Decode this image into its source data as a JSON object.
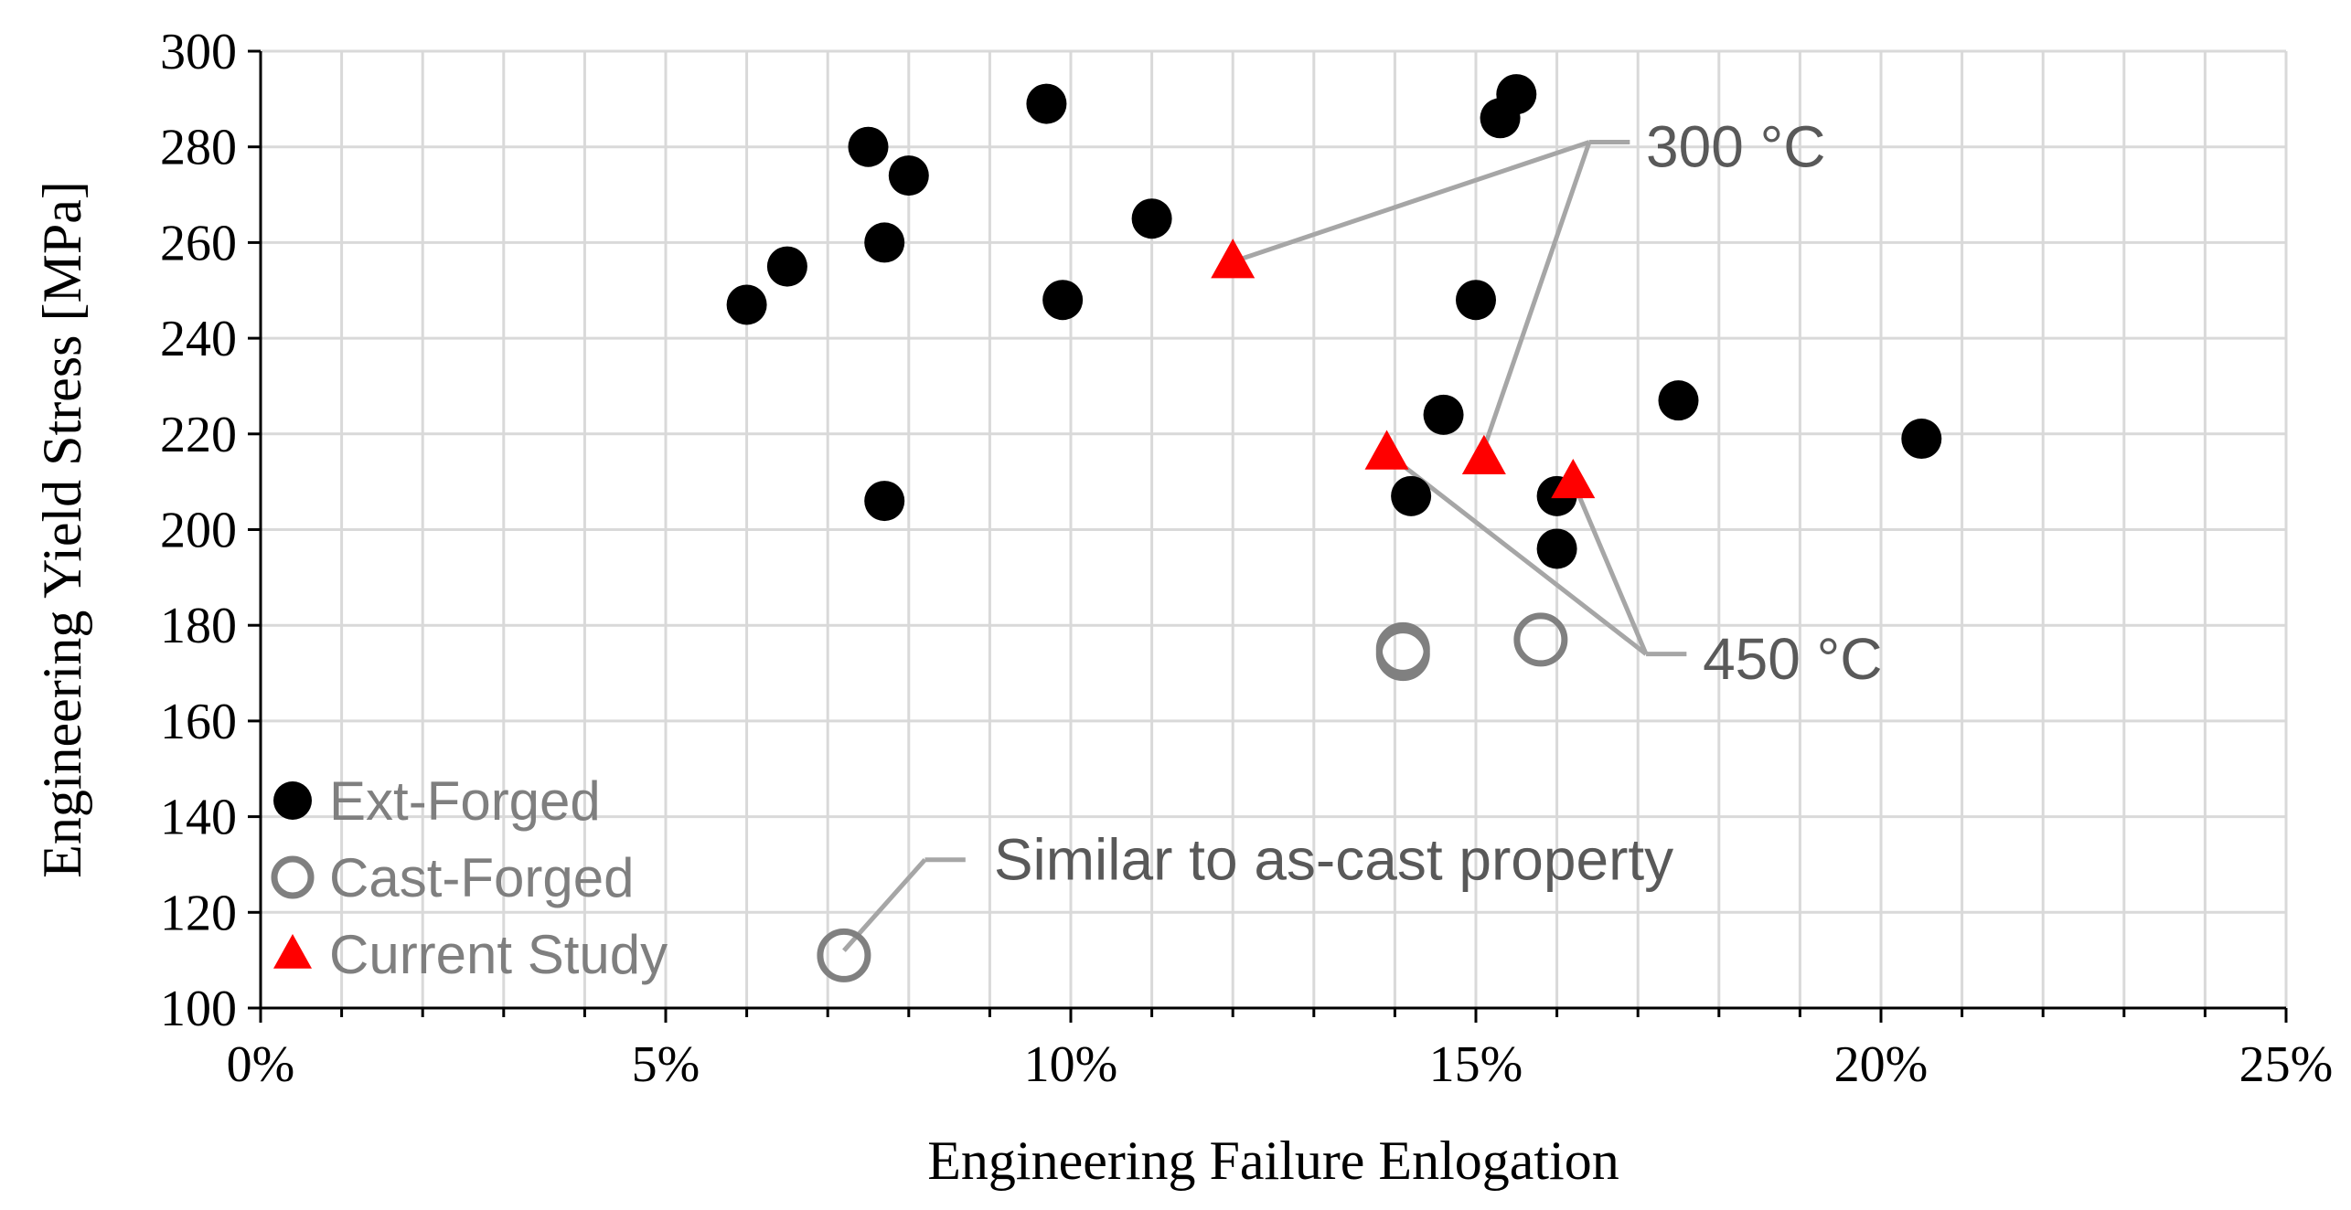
{
  "chart_data": {
    "type": "scatter",
    "title": "",
    "xlabel": "Engineering Failure Enlogation",
    "ylabel": "Engineering Yield Stress [MPa]",
    "xlim": [
      0,
      0.25
    ],
    "ylim": [
      100,
      300
    ],
    "x_major_ticks": [
      0,
      0.05,
      0.1,
      0.15,
      0.2,
      0.25
    ],
    "x_tick_labels": [
      "0%",
      "5%",
      "10%",
      "15%",
      "20%",
      "25%"
    ],
    "x_minor_step": 0.01,
    "y_ticks": [
      100,
      120,
      140,
      160,
      180,
      200,
      220,
      240,
      260,
      280,
      300
    ],
    "y_tick_labels": [
      "100",
      "120",
      "140",
      "160",
      "180",
      "200",
      "220",
      "240",
      "260",
      "280",
      "300"
    ],
    "grid": true,
    "legend_position": "bottom-left",
    "colors": {
      "ext_forged": "#000000",
      "cast_forged": "#808080",
      "current_study": "#ff0000",
      "grid": "#d9d9d9",
      "axis": "#000000",
      "annotation_line": "#a6a6a6"
    },
    "series": [
      {
        "name": "Ext-Forged",
        "marker": "filled-circle",
        "points": [
          [
            0.06,
            247
          ],
          [
            0.065,
            255
          ],
          [
            0.075,
            280
          ],
          [
            0.077,
            260
          ],
          [
            0.08,
            274
          ],
          [
            0.077,
            206
          ],
          [
            0.097,
            289
          ],
          [
            0.099,
            248
          ],
          [
            0.11,
            265
          ],
          [
            0.142,
            207
          ],
          [
            0.146,
            224
          ],
          [
            0.15,
            248
          ],
          [
            0.153,
            286
          ],
          [
            0.155,
            291
          ],
          [
            0.16,
            207
          ],
          [
            0.16,
            196
          ],
          [
            0.175,
            227
          ],
          [
            0.205,
            219
          ]
        ]
      },
      {
        "name": "Cast-Forged",
        "marker": "open-circle",
        "points": [
          [
            0.141,
            175
          ],
          [
            0.141,
            174
          ],
          [
            0.158,
            177
          ],
          [
            0.072,
            111
          ]
        ]
      },
      {
        "name": "Current Study",
        "marker": "filled-triangle",
        "points": [
          [
            0.12,
            256
          ],
          [
            0.139,
            216
          ],
          [
            0.151,
            215
          ],
          [
            0.162,
            210
          ]
        ]
      }
    ],
    "annotations": [
      {
        "text": "300 °C",
        "text_at": [
          0.171,
          280
        ],
        "hub": [
          0.164,
          281
        ],
        "elbow": [
          0.169,
          281
        ],
        "targets": [
          [
            0.12,
            256
          ],
          [
            0.151,
            217
          ]
        ]
      },
      {
        "text": "450 °C",
        "text_at": [
          0.178,
          173
        ],
        "hub": [
          0.171,
          174
        ],
        "elbow": [
          0.176,
          174
        ],
        "targets": [
          [
            0.139,
            216
          ],
          [
            0.162,
            210
          ]
        ]
      },
      {
        "text": "Similar to as-cast property",
        "text_at": [
          0.0905,
          131
        ],
        "hub": [
          0.082,
          131
        ],
        "elbow": [
          0.087,
          131
        ],
        "targets": [
          [
            0.072,
            112
          ]
        ]
      }
    ]
  }
}
